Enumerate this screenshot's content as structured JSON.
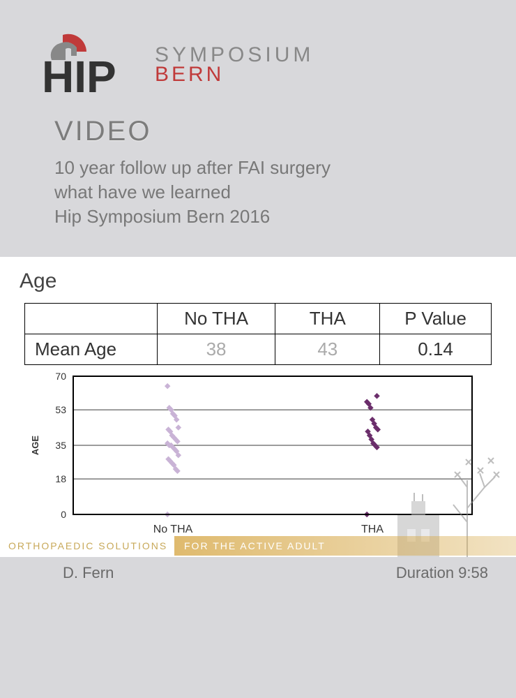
{
  "logo": {
    "symposium": "SYMPOSIUM",
    "bern": "BERN",
    "hip_color": "#333333",
    "crest_red": "#c03a3a",
    "crest_gray": "#888888"
  },
  "section_label": "VIDEO",
  "title_line1": "10 year follow up after FAI surgery",
  "title_line2": "what have we learned",
  "title_line3": "Hip Symposium Bern 2016",
  "slide": {
    "title": "Age",
    "table": {
      "col_row_label": "",
      "col1": "No THA",
      "col2": "THA",
      "col3": "P Value",
      "row_label": "Mean Age",
      "v1": "38",
      "v2": "43",
      "v3": "0.14"
    },
    "chart": {
      "type": "scatter",
      "y_axis_label": "AGE",
      "ylim": [
        0,
        70
      ],
      "yticks": [
        0,
        18,
        35,
        53,
        70
      ],
      "categories": [
        "No THA",
        "THA"
      ],
      "series": [
        {
          "name": "No THA",
          "marker_color": "#c9b3d6",
          "x": 0,
          "points": [
            0,
            22,
            23,
            25,
            26,
            27,
            28,
            30,
            32,
            33,
            34,
            35,
            35,
            36,
            37,
            38,
            39,
            40,
            42,
            43,
            44,
            48,
            50,
            51,
            53,
            54,
            65
          ]
        },
        {
          "name": "THA",
          "marker_color": "#6b2e6b",
          "x": 1,
          "points": [
            0,
            34,
            35,
            36,
            38,
            40,
            42,
            43,
            44,
            46,
            48,
            54,
            56,
            57,
            60
          ]
        }
      ],
      "marker": "diamond",
      "marker_size": 8,
      "background_color": "#ffffff",
      "gridline_color": "#3a3a3a",
      "axis_font_size": 14,
      "border_color": "#000000"
    },
    "banner_left": "ORTHOPAEDIC SOLUTIONS",
    "banner_right": "FOR THE ACTIVE ADULT",
    "banner_right_bg": "#d7a94a"
  },
  "footer": {
    "author": "D. Fern",
    "duration_label": "Duration 9:58"
  }
}
